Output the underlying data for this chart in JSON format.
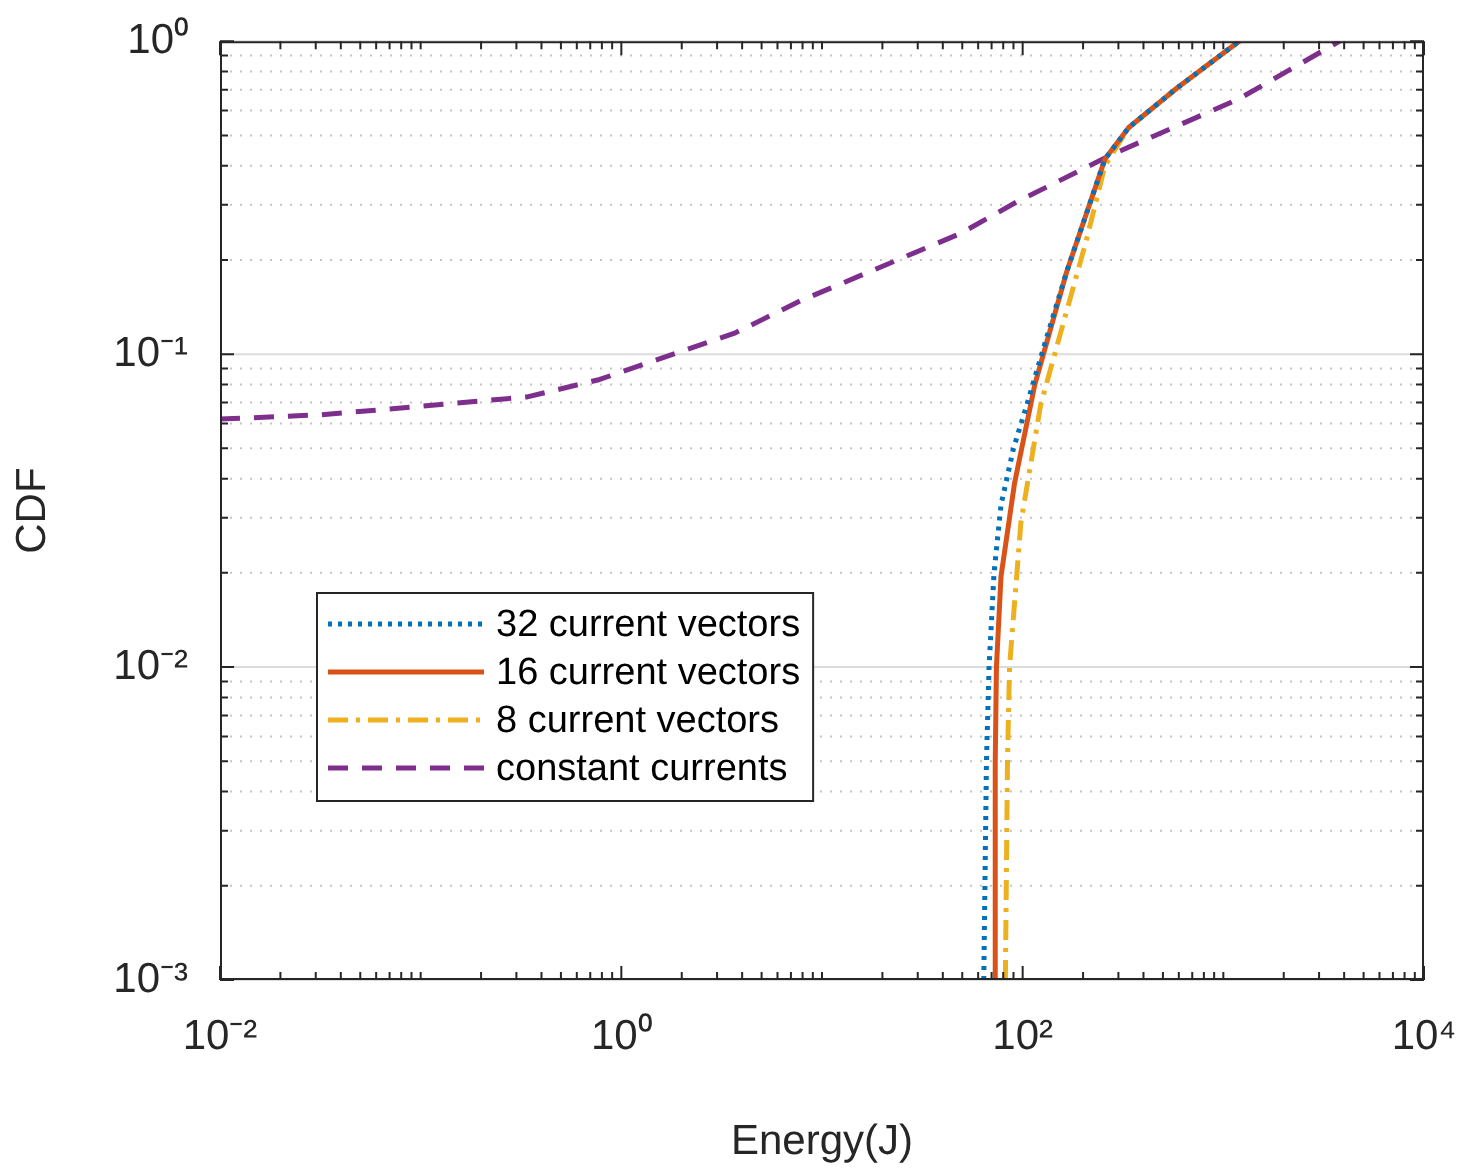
{
  "chart_data": {
    "type": "line",
    "xlabel": "Energy(J)",
    "ylabel": "CDF",
    "log": "xy",
    "grid": "y",
    "legend": "bottom left",
    "marker": "none",
    "xlim": [
      0.01,
      10000
    ],
    "ylim": [
      0.001,
      1
    ],
    "xticks": [
      {
        "value": 0.01,
        "label": "10⁻²"
      },
      {
        "value": 0.02,
        "label": null
      },
      {
        "value": 0.03,
        "label": null
      },
      {
        "value": 0.04,
        "label": null
      },
      {
        "value": 0.05,
        "label": null
      },
      {
        "value": 0.06,
        "label": null
      },
      {
        "value": 0.07,
        "label": null
      },
      {
        "value": 0.08,
        "label": null
      },
      {
        "value": 0.09,
        "label": null
      },
      {
        "value": 0.1,
        "label": null
      },
      {
        "value": 0.2,
        "label": null
      },
      {
        "value": 0.3,
        "label": null
      },
      {
        "value": 0.4,
        "label": null
      },
      {
        "value": 0.5,
        "label": null
      },
      {
        "value": 0.6,
        "label": null
      },
      {
        "value": 0.7,
        "label": null
      },
      {
        "value": 0.8,
        "label": null
      },
      {
        "value": 0.9,
        "label": null
      },
      {
        "value": 1,
        "label": "10⁰"
      },
      {
        "value": 2,
        "label": null
      },
      {
        "value": 3,
        "label": null
      },
      {
        "value": 4,
        "label": null
      },
      {
        "value": 5,
        "label": null
      },
      {
        "value": 6,
        "label": null
      },
      {
        "value": 7,
        "label": null
      },
      {
        "value": 8,
        "label": null
      },
      {
        "value": 9,
        "label": null
      },
      {
        "value": 10,
        "label": null
      },
      {
        "value": 20,
        "label": null
      },
      {
        "value": 30,
        "label": null
      },
      {
        "value": 40,
        "label": null
      },
      {
        "value": 50,
        "label": null
      },
      {
        "value": 60,
        "label": null
      },
      {
        "value": 70,
        "label": null
      },
      {
        "value": 80,
        "label": null
      },
      {
        "value": 90,
        "label": null
      },
      {
        "value": 100,
        "label": "10²"
      },
      {
        "value": 200,
        "label": null
      },
      {
        "value": 300,
        "label": null
      },
      {
        "value": 400,
        "label": null
      },
      {
        "value": 500,
        "label": null
      },
      {
        "value": 600,
        "label": null
      },
      {
        "value": 700,
        "label": null
      },
      {
        "value": 800,
        "label": null
      },
      {
        "value": 900,
        "label": null
      },
      {
        "value": 1000,
        "label": null
      },
      {
        "value": 2000,
        "label": null
      },
      {
        "value": 3000,
        "label": null
      },
      {
        "value": 4000,
        "label": null
      },
      {
        "value": 5000,
        "label": null
      },
      {
        "value": 6000,
        "label": null
      },
      {
        "value": 7000,
        "label": null
      },
      {
        "value": 8000,
        "label": null
      },
      {
        "value": 9000,
        "label": null
      },
      {
        "value": 10000,
        "label": "10⁴"
      }
    ],
    "yticks": [
      {
        "value": 0.001,
        "label": "10⁻³"
      },
      {
        "value": 0.002,
        "label": null
      },
      {
        "value": 0.003,
        "label": null
      },
      {
        "value": 0.004,
        "label": null
      },
      {
        "value": 0.005,
        "label": null
      },
      {
        "value": 0.006,
        "label": null
      },
      {
        "value": 0.007,
        "label": null
      },
      {
        "value": 0.008,
        "label": null
      },
      {
        "value": 0.009,
        "label": null
      },
      {
        "value": 0.01,
        "label": "10⁻²"
      },
      {
        "value": 0.02,
        "label": null
      },
      {
        "value": 0.03,
        "label": null
      },
      {
        "value": 0.04,
        "label": null
      },
      {
        "value": 0.05,
        "label": null
      },
      {
        "value": 0.06,
        "label": null
      },
      {
        "value": 0.07,
        "label": null
      },
      {
        "value": 0.08,
        "label": null
      },
      {
        "value": 0.09,
        "label": null
      },
      {
        "value": 0.1,
        "label": "10⁻¹"
      },
      {
        "value": 0.2,
        "label": null
      },
      {
        "value": 0.3,
        "label": null
      },
      {
        "value": 0.4,
        "label": null
      },
      {
        "value": 0.5,
        "label": null
      },
      {
        "value": 0.6,
        "label": null
      },
      {
        "value": 0.7,
        "label": null
      },
      {
        "value": 0.8,
        "label": null
      },
      {
        "value": 0.9,
        "label": null
      },
      {
        "value": 1,
        "label": "10⁰"
      }
    ],
    "series": [
      {
        "name": "32 current vectors",
        "color": "#0072bd",
        "line_style": "dotted",
        "x": [
          64,
          66,
          68,
          72,
          78,
          90,
          105,
          130,
          166,
          257,
          338,
          590,
          1200
        ],
        "values": [
          0.001,
          0.005,
          0.01,
          0.02,
          0.033,
          0.05,
          0.069,
          0.11,
          0.184,
          0.42,
          0.53,
          0.71,
          1
        ]
      },
      {
        "name": "16 current vectors",
        "color": "#d95319",
        "line_style": "solid",
        "x": [
          72,
          73,
          74,
          78,
          91,
          115,
          166,
          257,
          338,
          590,
          1200
        ],
        "values": [
          0.001,
          0.005,
          0.01,
          0.0195,
          0.0385,
          0.08,
          0.184,
          0.42,
          0.53,
          0.71,
          1
        ]
      },
      {
        "name": "8 current vectors",
        "color": "#edb120",
        "line_style": "dashdot",
        "x": [
          82,
          84,
          86,
          98,
          123,
          208,
          257,
          338,
          590,
          1200
        ],
        "values": [
          0.001,
          0.005,
          0.01,
          0.029,
          0.069,
          0.232,
          0.4,
          0.53,
          0.71,
          1
        ]
      },
      {
        "name": "constant currents",
        "color": "#7e2f8e",
        "line_style": "dashed",
        "x": [
          0.01,
          0.032,
          0.126,
          0.34,
          0.78,
          3.7,
          7.8,
          49,
          93,
          282,
          1200,
          3800
        ],
        "values": [
          0.062,
          0.064,
          0.069,
          0.073,
          0.083,
          0.117,
          0.148,
          0.243,
          0.306,
          0.436,
          0.655,
          1
        ]
      }
    ]
  }
}
